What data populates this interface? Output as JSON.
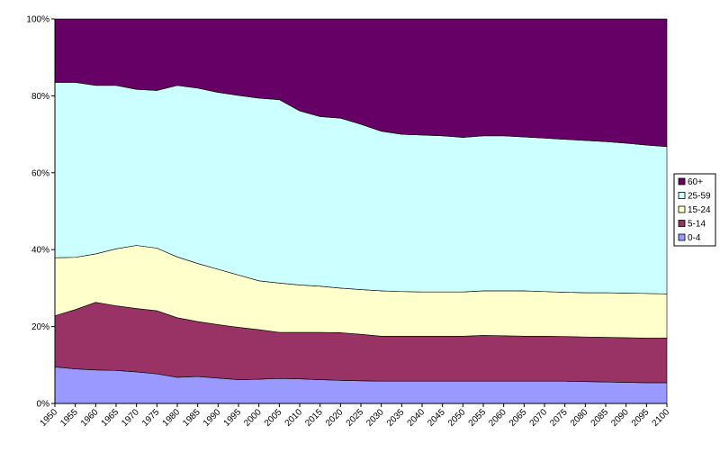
{
  "chart_data": {
    "type": "area",
    "stacked": "percent",
    "title": "",
    "xlabel": "",
    "ylabel": "",
    "ylim": [
      0,
      100
    ],
    "yticks": [
      0,
      20,
      40,
      60,
      80,
      100
    ],
    "ytick_format": "{v}%",
    "grid": false,
    "legend_position": "right",
    "x": [
      1950,
      1955,
      1960,
      1965,
      1970,
      1975,
      1980,
      1985,
      1990,
      1995,
      2000,
      2005,
      2010,
      2015,
      2020,
      2025,
      2030,
      2035,
      2040,
      2045,
      2050,
      2055,
      2060,
      2065,
      2070,
      2075,
      2080,
      2085,
      2090,
      2095,
      2100
    ],
    "series": [
      {
        "name": "0-4",
        "color": "#9999ff",
        "values": [
          9.5,
          9.0,
          8.7,
          8.6,
          8.2,
          7.7,
          6.8,
          7.0,
          6.6,
          6.2,
          6.3,
          6.5,
          6.4,
          6.2,
          6.0,
          5.9,
          5.8,
          5.8,
          5.8,
          5.8,
          5.8,
          5.8,
          5.8,
          5.8,
          5.8,
          5.8,
          5.7,
          5.6,
          5.5,
          5.4,
          5.4
        ]
      },
      {
        "name": "5-14",
        "color": "#993366",
        "values": [
          13.3,
          15.4,
          17.6,
          16.8,
          16.5,
          16.4,
          15.5,
          14.3,
          13.9,
          13.6,
          12.9,
          12.0,
          12.1,
          12.3,
          12.4,
          12.1,
          11.7,
          11.7,
          11.7,
          11.7,
          11.7,
          11.9,
          11.8,
          11.7,
          11.7,
          11.6,
          11.6,
          11.6,
          11.6,
          11.6,
          11.6
        ]
      },
      {
        "name": "15-24",
        "color": "#ffffcc",
        "values": [
          15.1,
          13.6,
          12.6,
          14.8,
          16.4,
          16.3,
          15.8,
          15.1,
          14.4,
          13.6,
          12.7,
          12.8,
          12.3,
          12.0,
          11.6,
          11.6,
          11.8,
          11.6,
          11.5,
          11.5,
          11.5,
          11.6,
          11.7,
          11.8,
          11.6,
          11.5,
          11.5,
          11.6,
          11.6,
          11.6,
          11.5
        ]
      },
      {
        "name": "25-59",
        "color": "#ccffff",
        "values": [
          45.6,
          45.5,
          43.8,
          42.5,
          40.6,
          41.0,
          44.6,
          45.6,
          46.0,
          46.7,
          47.5,
          47.7,
          45.3,
          44.1,
          44.2,
          43.0,
          41.5,
          40.9,
          40.8,
          40.6,
          40.2,
          40.3,
          40.3,
          40.0,
          39.9,
          39.8,
          39.6,
          39.3,
          39.0,
          38.6,
          38.3
        ]
      },
      {
        "name": "60+",
        "color": "#660066",
        "values": [
          16.5,
          16.5,
          17.3,
          17.3,
          18.3,
          18.6,
          17.3,
          18.0,
          19.1,
          19.9,
          20.6,
          21.0,
          23.9,
          25.4,
          25.8,
          27.4,
          29.2,
          30.0,
          30.2,
          30.4,
          30.8,
          30.4,
          30.4,
          30.7,
          31.0,
          31.3,
          31.6,
          31.9,
          32.3,
          32.8,
          33.2
        ]
      }
    ]
  }
}
